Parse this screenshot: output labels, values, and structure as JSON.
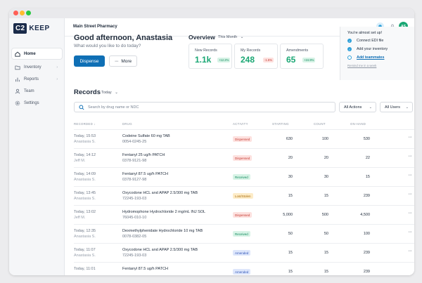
{
  "brand": {
    "logo_box": "C2",
    "logo_word": "KEEP"
  },
  "sidebar": {
    "items": [
      {
        "label": "Home",
        "icon": "home-icon",
        "active": true
      },
      {
        "label": "Inventory",
        "icon": "folder-icon",
        "has_chevron": true
      },
      {
        "label": "Reports",
        "icon": "bar-chart-icon",
        "has_chevron": true
      },
      {
        "label": "Team",
        "icon": "user-icon"
      },
      {
        "label": "Settings",
        "icon": "gear-icon"
      }
    ],
    "chevron": "›"
  },
  "topbar": {
    "store_name": "Main Street Pharmacy",
    "avatar_initials": "AS"
  },
  "welcome": {
    "greeting": "Good afternoon, Anastasia",
    "subtitle": "What would you like to do today?",
    "dispense_label": "Dispense",
    "more_label": "More",
    "more_dots": "···"
  },
  "overview": {
    "title": "Overview",
    "period": "This Month",
    "stats": [
      {
        "label": "New Records",
        "value": "1.1k",
        "change": "+12.2%",
        "trend": "up"
      },
      {
        "label": "My Records",
        "value": "248",
        "change": "-1.5%",
        "trend": "down"
      },
      {
        "label": "Amendments",
        "value": "65",
        "change": "+24.9%",
        "trend": "up"
      }
    ]
  },
  "setup": {
    "title": "You're almost set up!",
    "items": [
      {
        "label": "Connect EDI file",
        "done": true
      },
      {
        "label": "Add your inventory",
        "done": true
      },
      {
        "label": "Add teammates",
        "done": false
      }
    ],
    "remind": "Remind me in a week"
  },
  "records": {
    "title": "Records",
    "period": "Today",
    "search_placeholder": "Search by drug name or NDC",
    "actions_label": "All Actions",
    "users_label": "All Users",
    "columns": {
      "recorded": "RECORDED ↓",
      "drug": "DRUG",
      "activity": "ACTIVITY",
      "starting": "STARTING",
      "count": "COUNT",
      "onhand": "ON-HAND"
    },
    "menu_glyph": "···",
    "rows": [
      {
        "time": "Today, 15:53",
        "user": "Anastasia S.",
        "drug": "Codeine Sulfate 60 mg TAB",
        "ndc": "0054-0245-25",
        "activity": "Dispensed",
        "kind": "dispensed",
        "starting": "630",
        "count": "100",
        "onhand": "530"
      },
      {
        "time": "Today, 14:12",
        "user": "Jeff M.",
        "drug": "Fentanyl 25 ug/h PATCH",
        "ndc": "0378-9121-98",
        "activity": "Dispensed",
        "kind": "dispensed",
        "starting": "20",
        "count": "20",
        "onhand": "22"
      },
      {
        "time": "Today, 14:09",
        "user": "Anastasia S.",
        "drug": "Fentanyl 87.5 ug/h PATCH",
        "ndc": "0378-9127-98",
        "activity": "Received",
        "kind": "received",
        "starting": "30",
        "count": "30",
        "onhand": "15"
      },
      {
        "time": "Today, 13:45",
        "user": "Anastasia S.",
        "drug": "Oxycodone HCL and APAP 2.5/300 mg TAB",
        "ndc": "72245-193-03",
        "activity": "Lost/Stolen",
        "kind": "lost",
        "starting": "15",
        "count": "15",
        "onhand": "239"
      },
      {
        "time": "Today, 13:02",
        "user": "Jeff M.",
        "drug": "Hydromophone Hydrochloride 2 mg/mL INJ SOL",
        "ndc": "76045-010-10",
        "activity": "Dispensed",
        "kind": "dispensed",
        "starting": "5,000",
        "count": "500",
        "onhand": "4,500"
      },
      {
        "time": "Today, 12:35",
        "user": "Anastasia S.",
        "drug": "Dexmethylphenidate Hydrochloride 10 mg TAB",
        "ndc": "0078-0382-05",
        "activity": "Received",
        "kind": "received",
        "starting": "50",
        "count": "50",
        "onhand": "100"
      },
      {
        "time": "Today, 11:07",
        "user": "Anastasia S.",
        "drug": "Oxycodone HCL and APAP 2.5/300 mg TAB",
        "ndc": "72245-193-03",
        "activity": "Amended",
        "kind": "amended",
        "starting": "15",
        "count": "15",
        "onhand": "239"
      },
      {
        "time": "Today, 11:01",
        "user": "",
        "drug": "Fentanyl 87.5 ug/h PATCH",
        "ndc": "",
        "activity": "Amended",
        "kind": "amended",
        "starting": "15",
        "count": "15",
        "onhand": "239"
      }
    ]
  },
  "colors": {
    "primary": "#0f6fb5",
    "success": "#1aa774",
    "danger": "#c43b32",
    "brand_dark": "#1a2b4a"
  }
}
